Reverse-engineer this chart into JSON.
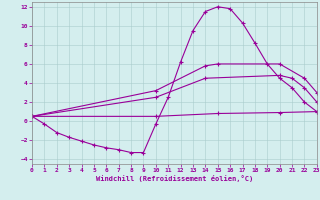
{
  "xlabel": "Windchill (Refroidissement éolien,°C)",
  "bg_color": "#d4eeee",
  "grid_color": "#aacccc",
  "line_color": "#990099",
  "xlim": [
    0,
    23
  ],
  "ylim": [
    -4.5,
    12.5
  ],
  "yticks": [
    -4,
    -2,
    0,
    2,
    4,
    6,
    8,
    10,
    12
  ],
  "xticks": [
    0,
    1,
    2,
    3,
    4,
    5,
    6,
    7,
    8,
    9,
    10,
    11,
    12,
    13,
    14,
    15,
    16,
    17,
    18,
    19,
    20,
    21,
    22,
    23
  ],
  "line1_x": [
    0,
    1,
    2,
    3,
    4,
    5,
    6,
    7,
    8,
    9,
    10,
    11,
    12,
    13,
    14,
    15,
    16,
    17,
    18,
    19,
    20,
    21,
    22,
    23
  ],
  "line1_y": [
    0.5,
    -0.3,
    -1.2,
    -1.7,
    -2.1,
    -2.5,
    -2.8,
    -3.0,
    -3.3,
    -3.3,
    -0.3,
    2.5,
    6.2,
    9.5,
    11.5,
    12.0,
    11.8,
    10.3,
    8.2,
    6.0,
    4.5,
    3.5,
    2.0,
    1.0
  ],
  "line2_x": [
    0,
    10,
    14,
    15,
    20,
    22,
    23
  ],
  "line2_y": [
    0.5,
    3.2,
    5.8,
    6.0,
    6.0,
    4.5,
    3.0
  ],
  "line3_x": [
    0,
    10,
    14,
    20,
    21,
    22,
    23
  ],
  "line3_y": [
    0.5,
    2.5,
    4.5,
    4.8,
    4.5,
    3.5,
    2.0
  ],
  "line4_x": [
    0,
    10,
    15,
    20,
    23
  ],
  "line4_y": [
    0.5,
    0.5,
    0.8,
    0.9,
    1.0
  ]
}
